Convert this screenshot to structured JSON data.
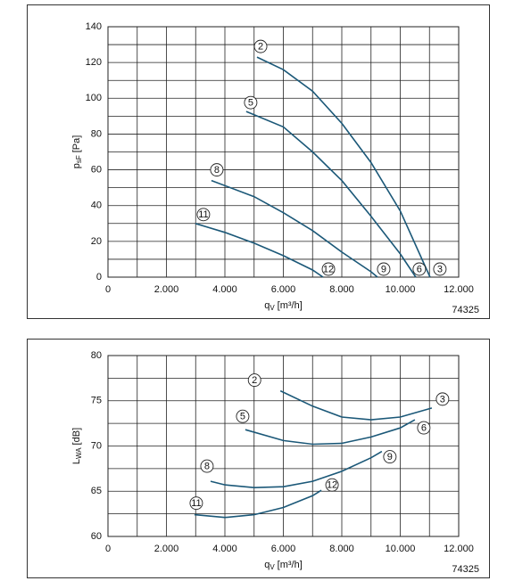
{
  "chart_data": [
    {
      "type": "line",
      "ylabel": {
        "text": "p",
        "sub": "sF",
        "unit": "[Pa]"
      },
      "xlabel": {
        "text": "q",
        "sub": "V",
        "unit": "[m³/h]"
      },
      "figure_id": "74325",
      "xlim": [
        0,
        12000
      ],
      "ylim": [
        0,
        140
      ],
      "xticks": [
        0,
        {
          "value": 2000,
          "label": "2.000"
        },
        {
          "value": 4000,
          "label": "4.000"
        },
        {
          "value": 6000,
          "label": "6.000"
        },
        {
          "value": 8000,
          "label": "8.000"
        },
        {
          "value": 10000,
          "label": "10.000"
        },
        {
          "value": 12000,
          "label": "12.000"
        }
      ],
      "yticks": [
        0,
        20,
        40,
        60,
        80,
        100,
        120,
        140
      ],
      "minor_xticks": [
        1000,
        3000,
        5000,
        7000,
        9000,
        11000
      ],
      "minor_yticks": [
        10,
        30,
        50,
        70,
        90,
        110,
        130
      ],
      "grid": true,
      "series": [
        {
          "name": "2",
          "end_label": "3",
          "color": "#1b5878",
          "x": [
            5100,
            6000,
            7000,
            8000,
            9000,
            10000,
            11020
          ],
          "values": [
            123,
            116,
            104,
            86,
            64,
            37,
            0
          ]
        },
        {
          "name": "5",
          "end_label": "6",
          "color": "#1b5878",
          "x": [
            4730,
            6000,
            7000,
            8000,
            9000,
            10000,
            10530
          ],
          "values": [
            92.6,
            84,
            70,
            54,
            34,
            13,
            0
          ]
        },
        {
          "name": "8",
          "end_label": "9",
          "color": "#1b5878",
          "x": [
            3540,
            5000,
            6000,
            7000,
            8000,
            9000,
            9220
          ],
          "values": [
            54,
            45,
            36,
            26,
            14,
            3,
            0
          ]
        },
        {
          "name": "11",
          "end_label": "12",
          "color": "#1b5878",
          "x": [
            2990,
            4000,
            5000,
            6000,
            7000,
            7360
          ],
          "values": [
            30,
            25,
            19,
            12,
            4,
            0
          ]
        }
      ]
    },
    {
      "type": "line",
      "ylabel": {
        "text": "L",
        "sub": "WA",
        "unit": "[dB]"
      },
      "xlabel": {
        "text": "q",
        "sub": "V",
        "unit": "[m³/h]"
      },
      "figure_id": "74325",
      "xlim": [
        0,
        12000
      ],
      "ylim": [
        60,
        80
      ],
      "xticks": [
        0,
        {
          "value": 2000,
          "label": "2.000"
        },
        {
          "value": 4000,
          "label": "4.000"
        },
        {
          "value": 6000,
          "label": "6.000"
        },
        {
          "value": 8000,
          "label": "8.000"
        },
        {
          "value": 10000,
          "label": "10.000"
        },
        {
          "value": 12000,
          "label": "12.000"
        }
      ],
      "yticks": [
        60,
        65,
        70,
        75,
        80
      ],
      "minor_xticks": [
        1000,
        3000,
        5000,
        7000,
        9000,
        11000
      ],
      "minor_yticks": [
        62.5,
        67.5,
        72.5,
        77.5
      ],
      "grid": true,
      "series": [
        {
          "name": "2",
          "end_label": "3",
          "color": "#1b5878",
          "x": [
            5900,
            7000,
            8000,
            9000,
            10000,
            11080
          ],
          "values": [
            76.1,
            74.4,
            73.2,
            72.9,
            73.2,
            74.2
          ]
        },
        {
          "name": "5",
          "end_label": "6",
          "color": "#1b5878",
          "x": [
            4700,
            6000,
            7000,
            8000,
            9000,
            10000,
            10500
          ],
          "values": [
            71.8,
            70.6,
            70.2,
            70.3,
            71,
            72,
            72.9
          ]
        },
        {
          "name": "8",
          "end_label": "9",
          "color": "#1b5878",
          "x": [
            3510,
            4000,
            5000,
            6000,
            7000,
            8000,
            9000,
            9370
          ],
          "values": [
            66.1,
            65.7,
            65.4,
            65.5,
            66.1,
            67.2,
            68.7,
            69.4
          ]
        },
        {
          "name": "11",
          "end_label": "12",
          "color": "#1b5878",
          "x": [
            2960,
            4000,
            5000,
            6000,
            7000,
            7300
          ],
          "values": [
            62.4,
            62.1,
            62.4,
            63.2,
            64.5,
            65.1
          ]
        }
      ]
    }
  ]
}
